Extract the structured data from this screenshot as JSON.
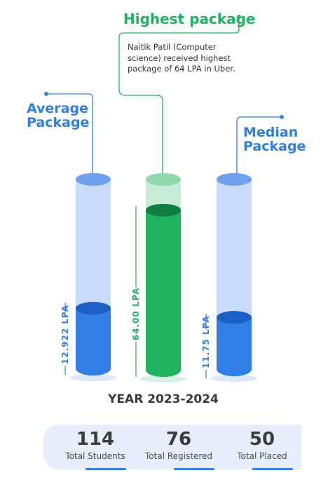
{
  "highest": {
    "title": "Highest package",
    "description": "Naitik Patil (Computer science) received highest package of 64 LPA in Uber.",
    "value_label": "64.00 LPA",
    "color": "#1eb35f"
  },
  "average": {
    "title_line1": "Average",
    "title_line2": "Package",
    "value_label": "12.922 LPA",
    "color": "#2f7fe6"
  },
  "median": {
    "title_line1": "Median",
    "title_line2": "Package",
    "value_label": "11.75 LPA",
    "color": "#2f7fe6"
  },
  "year_label": "YEAR 2023-2024",
  "stats": [
    {
      "number": "114",
      "label": "Total Students"
    },
    {
      "number": "76",
      "label": "Total Registered"
    },
    {
      "number": "50",
      "label": "Total Placed"
    }
  ]
}
